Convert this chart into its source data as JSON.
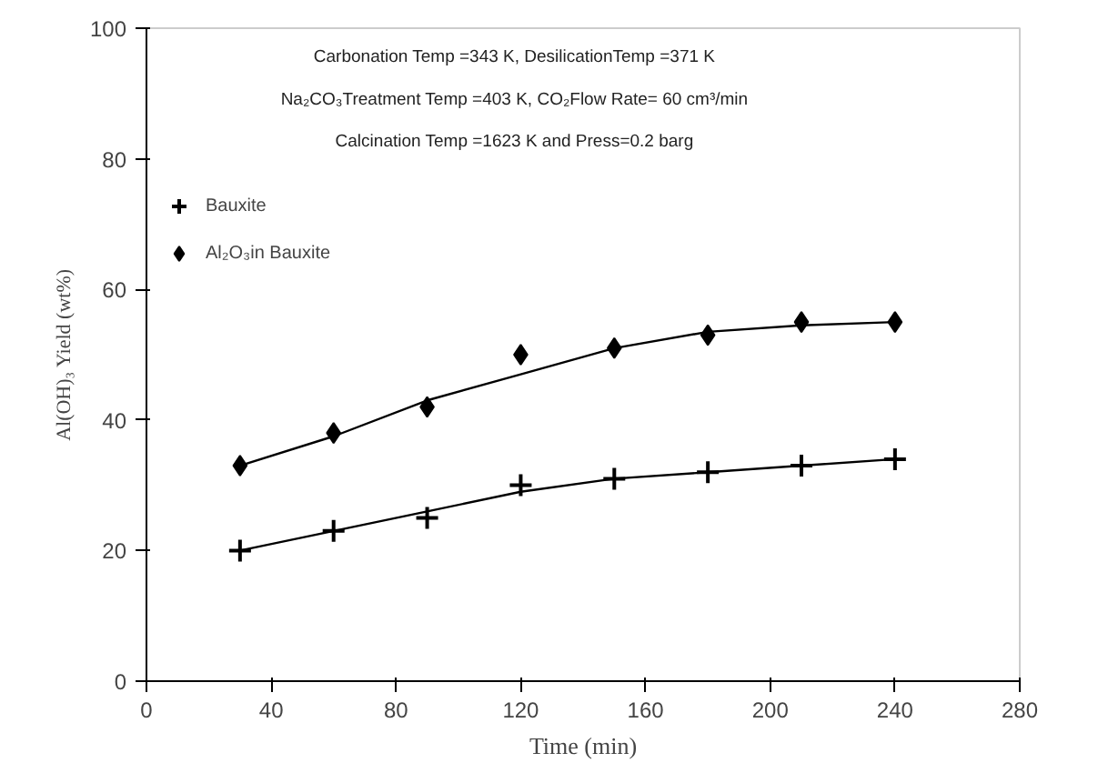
{
  "chart_data": {
    "type": "scatter",
    "xlabel": "Time (min)",
    "ylabel": "Al(OH)₃ Yield (wt%)",
    "xlim": [
      0,
      280
    ],
    "xticks": [
      0,
      40,
      80,
      120,
      160,
      200,
      240,
      280
    ],
    "ylim": [
      0,
      100
    ],
    "yticks": [
      0,
      20,
      40,
      60,
      80,
      100
    ],
    "grid": false,
    "legend": "top left",
    "annotations": [
      "Carbonation Temp =343 K, DesilicationTemp =371 K",
      "Na₂CO₃Treatment Temp =403 K, CO₂Flow Rate= 60 cm³/min",
      "Calcination Temp =1623 K and Press=0.2 barg"
    ],
    "series": [
      {
        "name": "Bauxite",
        "marker": "cross",
        "color": "#000000",
        "x": [
          30,
          60,
          90,
          120,
          150,
          180,
          210,
          240
        ],
        "values": [
          20,
          23,
          25,
          30,
          31,
          32,
          33,
          34
        ]
      },
      {
        "name": "Al₂O₃in Bauxite",
        "marker": "diamond",
        "color": "#000000",
        "x": [
          30,
          60,
          90,
          120,
          150,
          180,
          210,
          240
        ],
        "values": [
          33,
          38,
          42,
          50,
          51,
          53,
          55,
          55
        ]
      },
      {
        "type": "line",
        "color": "#000000",
        "x": [
          30,
          60,
          90,
          120,
          150,
          180,
          210,
          240
        ],
        "values": [
          20,
          23,
          26,
          29,
          31,
          32,
          33,
          34
        ]
      },
      {
        "type": "line",
        "color": "#000000",
        "x": [
          30,
          60,
          90,
          120,
          150,
          180,
          210,
          240
        ],
        "values": [
          33,
          37.5,
          43,
          47,
          51,
          53.5,
          54.5,
          55
        ]
      }
    ]
  }
}
